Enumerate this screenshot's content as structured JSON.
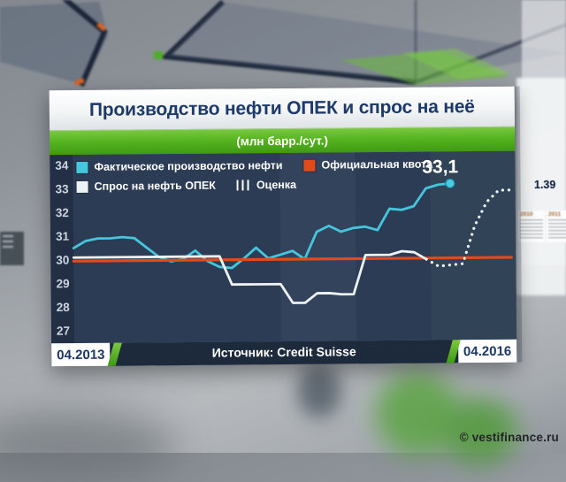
{
  "panel": {
    "title": "Производство нефти ОПЕК и спрос на неё",
    "subtitle": "(млн барр./сут.)",
    "source": "Источник: Credit Suisse",
    "date_start": "04.2013",
    "date_end": "04.2016"
  },
  "watermark": "© vestifinance.ru",
  "background": {
    "big_number": "1.39",
    "year_left": "2010",
    "year_right": "2011"
  },
  "chart_data": {
    "type": "line",
    "title": "Производство нефти ОПЕК и спрос на неё",
    "units": "млн барр./сут.",
    "x_range": [
      "04.2013",
      "04.2016"
    ],
    "x_months": 36,
    "ylim": [
      27,
      34
    ],
    "yticks": [
      34,
      33,
      32,
      31,
      30,
      29,
      28,
      27
    ],
    "grid": false,
    "legend_position": "top-left",
    "end_marker": {
      "month": 31,
      "value": 33.1,
      "label": "33,1",
      "color": "#49cbe2"
    },
    "series": [
      {
        "name": "Фактическое производство нефти",
        "color": "#45c6dd",
        "style": "solid",
        "width": 2.8,
        "start": 0,
        "values": [
          30.5,
          30.8,
          30.9,
          30.9,
          30.95,
          30.9,
          30.5,
          30.1,
          29.9,
          30.0,
          30.35,
          29.9,
          29.65,
          29.6,
          30.0,
          30.45,
          30.0,
          30.15,
          30.3,
          29.95,
          31.1,
          31.35,
          31.1,
          31.25,
          31.3,
          31.15,
          32.05,
          32.0,
          32.15,
          32.9,
          33.05,
          33.1
        ]
      },
      {
        "name": "Официальная квота",
        "color": "#e2491b",
        "style": "solid",
        "width": 3.2,
        "x": [
          0,
          36
        ],
        "values": [
          29.95,
          29.95
        ]
      },
      {
        "name": "Спрос на нефть ОПЕК",
        "color": "#edf2f5",
        "style": "solid",
        "width": 2.8,
        "start": 0,
        "values": [
          30.1,
          30.1,
          30.1,
          30.1,
          30.1,
          30.1,
          30.1,
          30.1,
          30.1,
          30.1,
          30.1,
          30.1,
          30.1,
          28.9,
          28.9,
          28.9,
          28.9,
          28.9,
          28.1,
          28.1,
          28.5,
          28.5,
          28.45,
          28.45,
          30.1,
          30.1,
          30.1,
          30.25,
          30.2,
          29.9
        ]
      },
      {
        "name": "Оценка",
        "color": "#edf2f5",
        "style": "dotted",
        "width": 3.2,
        "start": 29,
        "values": [
          29.9,
          29.6,
          29.65,
          29.7,
          31.3,
          32.3,
          32.8,
          32.8
        ]
      }
    ]
  }
}
